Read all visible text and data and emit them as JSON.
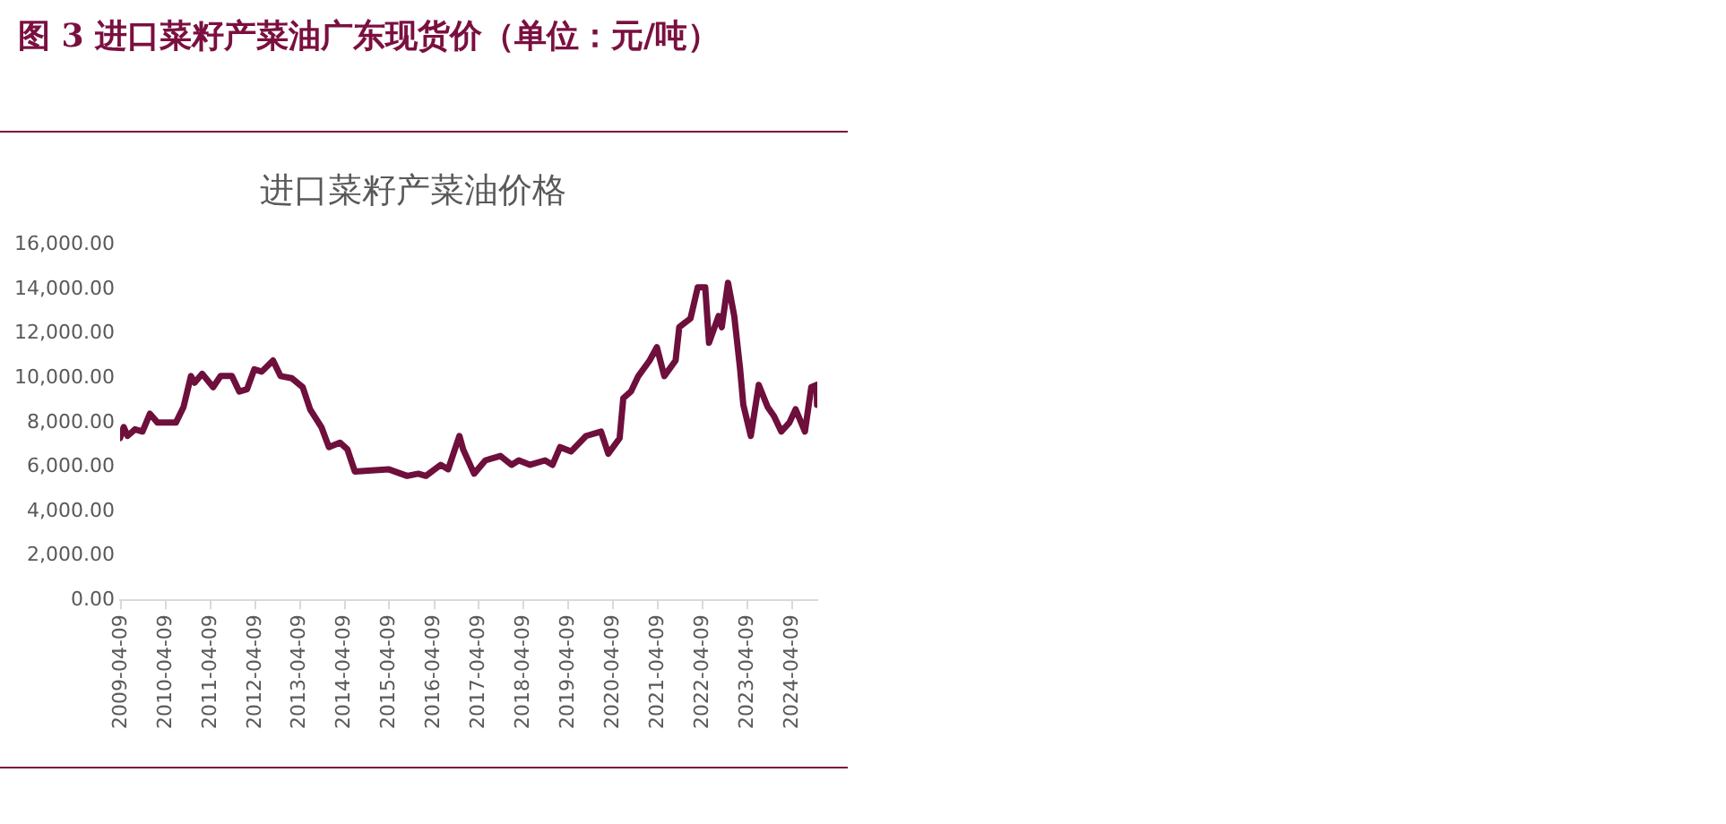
{
  "chart_data": {
    "type": "line",
    "title": "图 3 进口菜籽产菜油广东现货价（单位：元/吨）",
    "subtitle": "进口菜籽产菜油价格",
    "x": [
      "2009-04",
      "2009-05",
      "2009-06",
      "2009-08",
      "2009-10",
      "2009-12",
      "2010-02",
      "2010-07",
      "2010-09",
      "2010-11",
      "2010-12",
      "2011-02",
      "2011-05",
      "2011-07",
      "2011-10",
      "2011-12",
      "2012-02",
      "2012-04",
      "2012-06",
      "2012-09",
      "2012-11",
      "2013-02",
      "2013-05",
      "2013-07",
      "2013-10",
      "2013-12",
      "2014-03",
      "2014-05",
      "2014-07",
      "2015-04",
      "2015-09",
      "2015-12",
      "2016-02",
      "2016-06",
      "2016-08",
      "2016-11",
      "2016-12",
      "2017-03",
      "2017-06",
      "2017-10",
      "2018-01",
      "2018-03",
      "2018-06",
      "2018-10",
      "2018-12",
      "2019-02",
      "2019-05",
      "2019-09",
      "2020-01",
      "2020-03",
      "2020-06",
      "2020-07",
      "2020-09",
      "2020-11",
      "2021-02",
      "2021-04",
      "2021-06",
      "2021-09",
      "2021-10",
      "2022-01",
      "2022-03",
      "2022-05",
      "2022-06",
      "2022-08-18",
      "2022-09-13",
      "2022-11-03",
      "2022-12-24",
      "2023-02-10",
      "2023-03-08",
      "2023-05-08",
      "2023-07-12",
      "2023-09-23",
      "2023-11-13",
      "2024-01-12",
      "2024-03-18",
      "2024-05-08",
      "2024-07-23",
      "2024-09-13",
      "2024-10-27",
      "2024-10-30"
    ],
    "series": [
      {
        "color": "#6e0f3c",
        "values": [
          7300,
          7800,
          7400,
          7700,
          7600,
          8400,
          8000,
          8000,
          8700,
          10100,
          9800,
          10200,
          9600,
          10100,
          10100,
          9400,
          9500,
          10400,
          10300,
          10800,
          10100,
          10000,
          9600,
          8600,
          7800,
          6900,
          7100,
          6800,
          5800,
          5900,
          5600,
          5700,
          5600,
          6100,
          5900,
          7400,
          6800,
          5700,
          6300,
          6500,
          6100,
          6300,
          6100,
          6300,
          6100,
          6900,
          6700,
          7400,
          7600,
          6600,
          7300,
          9100,
          9400,
          10100,
          10800,
          11400,
          10100,
          10800,
          12300,
          12700,
          14100,
          14100,
          11600,
          12800,
          12300,
          14300,
          12800,
          10400,
          8800,
          7400,
          9700,
          8700,
          8300,
          7600,
          8000,
          8600,
          7600,
          9600,
          9700,
          8800
        ]
      }
    ],
    "xlim": [
      "2009-04-01",
      "2024-11-01"
    ],
    "xticks": [
      "2009-04-09",
      "2010-04-09",
      "2011-04-09",
      "2012-04-09",
      "2013-04-09",
      "2014-04-09",
      "2015-04-09",
      "2016-04-09",
      "2017-04-09",
      "2018-04-09",
      "2019-04-09",
      "2020-04-09",
      "2021-04-09",
      "2022-04-09",
      "2023-04-09",
      "2024-04-09"
    ],
    "ylim": [
      0,
      16000
    ],
    "yticks": [
      {
        "value": 0,
        "label": "0.00"
      },
      {
        "value": 2000,
        "label": "2,000.00"
      },
      {
        "value": 4000,
        "label": "4,000.00"
      },
      {
        "value": 6000,
        "label": "6,000.00"
      },
      {
        "value": 8000,
        "label": "8,000.00"
      },
      {
        "value": 10000,
        "label": "10,000.00"
      },
      {
        "value": 12000,
        "label": "12,000.00"
      },
      {
        "value": 14000,
        "label": "14,000.00"
      },
      {
        "value": 16000,
        "label": "16,000.00"
      }
    ],
    "grid": false,
    "legend": false,
    "marker": "none",
    "line_style": "solid"
  }
}
